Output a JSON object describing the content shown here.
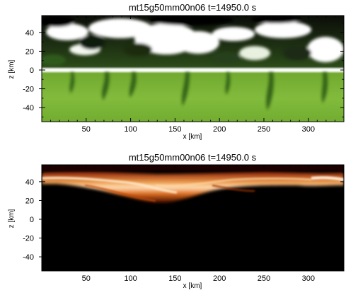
{
  "chart_data": [
    {
      "type": "heatmap",
      "title": "mt15g50mm00n06  t=14950.0 s",
      "xlabel": "x [km]",
      "ylabel": "z [km]",
      "xlim": [
        0,
        340
      ],
      "ylim": [
        -55,
        58
      ],
      "xticks": [
        50,
        100,
        150,
        200,
        250,
        300
      ],
      "yticks": [
        -40,
        -20,
        0,
        20,
        40
      ],
      "grid": false,
      "legend": "none",
      "colormap": [
        "#000000",
        "#1f4a10",
        "#4f8f24",
        "#7cb93a",
        "#ffffff"
      ],
      "features": [
        "uniform green field below z = 0 with dark green downward plumes",
        "white and black blotched patches between z = 0 and z = 50",
        "white band along z = 0"
      ]
    },
    {
      "type": "heatmap",
      "title": "mt15g50mm00n06  t=14950.0 s",
      "xlabel": "x [km]",
      "ylabel": "z [km]",
      "xlim": [
        0,
        340
      ],
      "ylim": [
        -55,
        58
      ],
      "xticks": [
        50,
        100,
        150,
        200,
        250,
        300
      ],
      "yticks": [
        -40,
        -20,
        0,
        20,
        40
      ],
      "grid": false,
      "legend": "none",
      "colormap": [
        "#000000",
        "#5a0a00",
        "#b03a08",
        "#f08a30",
        "#ffe8c8"
      ],
      "features": [
        "black field below z = 30",
        "bright orange-white layer near z = 40 to 50, dipping toward z = 30 between x = 150 and 200"
      ]
    }
  ]
}
